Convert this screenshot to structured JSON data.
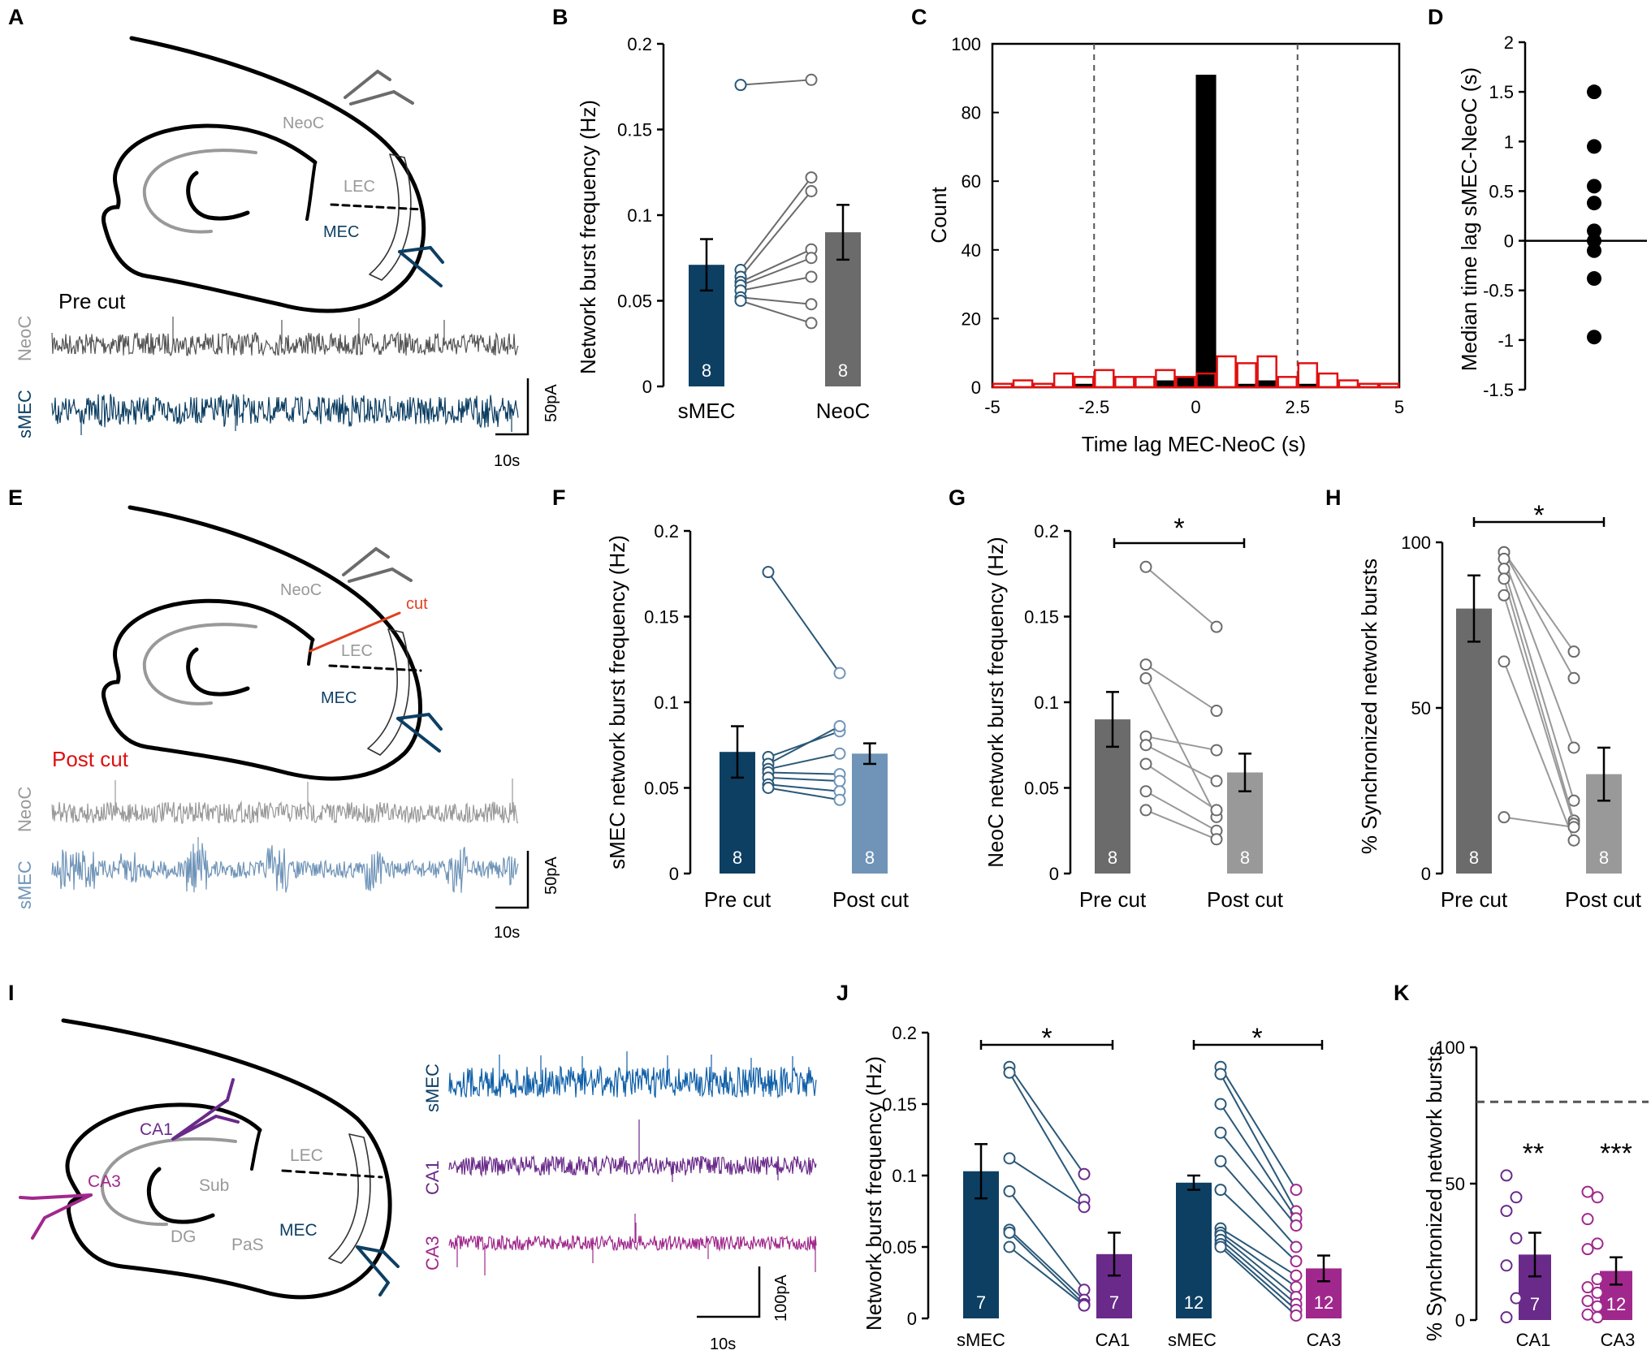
{
  "colors": {
    "smec": "#0d3f63",
    "smec_line": "#2a5878",
    "neoc_dark": "#6b6b6b",
    "neoc_light": "#999999",
    "smec_post": "#6f94b8",
    "smec_blue": "#1060a8",
    "ca1": "#6a2a8a",
    "ca3": "#a0288c",
    "cut": "#e04020",
    "red": "#e11111",
    "black": "#000000",
    "post_text": "#dd1111"
  },
  "panels": {
    "A": "A",
    "B": "B",
    "C": "C",
    "D": "D",
    "E": "E",
    "F": "F",
    "G": "G",
    "H": "H",
    "I": "I",
    "J": "J",
    "K": "K"
  },
  "diagram_a": {
    "labels": {
      "neoc": "NeoC",
      "lec": "LEC",
      "mec": "MEC"
    },
    "condition": "Pre cut",
    "trace_labels": {
      "neoc": "NeoC",
      "smec": "sMEC"
    },
    "scale": {
      "y": "50pA",
      "x": "10s"
    }
  },
  "diagram_e": {
    "labels": {
      "neoc": "NeoC",
      "lec": "LEC",
      "mec": "MEC",
      "cut": "cut"
    },
    "condition": "Post cut",
    "trace_labels": {
      "neoc": "NeoC",
      "smec": "sMEC"
    },
    "scale": {
      "y": "50pA",
      "x": "10s"
    }
  },
  "diagram_i": {
    "labels": {
      "ca1": "CA1",
      "ca3": "CA3",
      "sub": "Sub",
      "dg": "DG",
      "pas": "PaS",
      "lec": "LEC",
      "mec": "MEC"
    },
    "trace_labels": {
      "smec": "sMEC",
      "ca1": "CA1",
      "ca3": "CA3"
    },
    "scale": {
      "y": "100pA",
      "x": "10s"
    }
  },
  "chart_data": [
    {
      "id": "B",
      "type": "bar",
      "ylabel": "Network burst frequency (Hz)",
      "ylim": [
        0,
        0.2
      ],
      "yticks": [
        0,
        0.05,
        0.1,
        0.15,
        0.2
      ],
      "ytick_labels": [
        "0",
        "0.05",
        "0.1",
        "0.15",
        "0.2"
      ],
      "categories": [
        "sMEC",
        "NeoC"
      ],
      "values": [
        0.071,
        0.09
      ],
      "errors": [
        0.015,
        0.016
      ],
      "n_labels": [
        "8",
        "8"
      ],
      "paired": [
        [
          0.176,
          0.179
        ],
        [
          0.068,
          0.122
        ],
        [
          0.064,
          0.114
        ],
        [
          0.061,
          0.08
        ],
        [
          0.059,
          0.075
        ],
        [
          0.056,
          0.064
        ],
        [
          0.052,
          0.048
        ],
        [
          0.05,
          0.037
        ]
      ]
    },
    {
      "id": "C",
      "type": "histogram",
      "title": "",
      "xlabel": "Time lag MEC-NeoC (s)",
      "ylabel": "Count",
      "xlim": [
        -5,
        5
      ],
      "ylim": [
        0,
        100
      ],
      "xticks": [
        -5,
        -2.5,
        0,
        2.5,
        5
      ],
      "xtick_labels": [
        "-5",
        "-2.5",
        "0",
        "2.5",
        "5"
      ],
      "yticks": [
        0,
        20,
        40,
        60,
        80,
        100
      ],
      "ytick_labels": [
        "0",
        "20",
        "40",
        "60",
        "80",
        "100"
      ],
      "dashed_lines": [
        -2.5,
        2.5
      ],
      "bin_width": 0.5,
      "series": [
        {
          "name": "observed",
          "bin_starts": [
            -3.0,
            -1.0,
            -0.5,
            0.0,
            1.0,
            1.5,
            2.5
          ],
          "counts": [
            1,
            2,
            3,
            91,
            1,
            2,
            1
          ]
        },
        {
          "name": "shuffled",
          "bin_starts": [
            -5.0,
            -4.5,
            -4.0,
            -3.5,
            -3.0,
            -2.5,
            -2.0,
            -1.5,
            -1.0,
            -0.5,
            0.0,
            0.5,
            1.0,
            1.5,
            2.0,
            2.5,
            3.0,
            3.5,
            4.0,
            4.5
          ],
          "counts": [
            1,
            2,
            1,
            4,
            3,
            5,
            3,
            3,
            5,
            3,
            4,
            9,
            7,
            9,
            3,
            7,
            4,
            2,
            1,
            1
          ]
        }
      ]
    },
    {
      "id": "D",
      "type": "scatter",
      "ylabel": "Median time lag sMEC-NeoC (s)",
      "ylim": [
        -1.5,
        2
      ],
      "yticks": [
        -1.5,
        -1,
        -0.5,
        0,
        0.5,
        1,
        1.5,
        2
      ],
      "ytick_labels": [
        "-1.5",
        "-1",
        "-0.5",
        "0",
        "0.5",
        "1",
        "1.5",
        "2"
      ],
      "values": [
        1.5,
        0.95,
        0.55,
        0.38,
        0.1,
        0.0,
        -0.1,
        -0.38,
        -0.97
      ]
    },
    {
      "id": "F",
      "type": "bar",
      "ylabel": "sMEC network burst frequency (Hz)",
      "ylim": [
        0,
        0.2
      ],
      "yticks": [
        0,
        0.05,
        0.1,
        0.15,
        0.2
      ],
      "ytick_labels": [
        "0",
        "0.05",
        "0.1",
        "0.15",
        "0.2"
      ],
      "categories": [
        "Pre cut",
        "Post cut"
      ],
      "values": [
        0.071,
        0.07
      ],
      "errors": [
        0.015,
        0.006
      ],
      "n_labels": [
        "8",
        "8"
      ],
      "paired": [
        [
          0.176,
          0.117
        ],
        [
          0.068,
          0.083
        ],
        [
          0.064,
          0.086
        ],
        [
          0.061,
          0.07
        ],
        [
          0.059,
          0.058
        ],
        [
          0.056,
          0.054
        ],
        [
          0.052,
          0.048
        ],
        [
          0.05,
          0.043
        ]
      ]
    },
    {
      "id": "G",
      "type": "bar",
      "ylabel": "NeoC network burst frequency (Hz)",
      "ylim": [
        0,
        0.2
      ],
      "yticks": [
        0,
        0.05,
        0.1,
        0.15,
        0.2
      ],
      "ytick_labels": [
        "0",
        "0.05",
        "0.1",
        "0.15",
        "0.2"
      ],
      "categories": [
        "Pre cut",
        "Post cut"
      ],
      "values": [
        0.09,
        0.059
      ],
      "errors": [
        0.016,
        0.011
      ],
      "n_labels": [
        "8",
        "8"
      ],
      "significance": "*",
      "paired": [
        [
          0.179,
          0.144
        ],
        [
          0.122,
          0.095
        ],
        [
          0.114,
          0.033
        ],
        [
          0.08,
          0.072
        ],
        [
          0.075,
          0.054
        ],
        [
          0.064,
          0.037
        ],
        [
          0.048,
          0.025
        ],
        [
          0.037,
          0.02
        ]
      ]
    },
    {
      "id": "H",
      "type": "bar",
      "ylabel": "% Synchronized network bursts",
      "ylim": [
        0,
        100
      ],
      "yticks": [
        0,
        50,
        100
      ],
      "ytick_labels": [
        "0",
        "50",
        "100"
      ],
      "categories": [
        "Pre cut",
        "Post cut"
      ],
      "values": [
        80,
        30
      ],
      "errors": [
        10,
        8
      ],
      "n_labels": [
        "8",
        "8"
      ],
      "significance": "*",
      "paired": [
        [
          97,
          67
        ],
        [
          97,
          59
        ],
        [
          95,
          38
        ],
        [
          92,
          22
        ],
        [
          89,
          16
        ],
        [
          84,
          15
        ],
        [
          64,
          10
        ],
        [
          17,
          14
        ]
      ]
    },
    {
      "id": "J",
      "type": "bar",
      "ylabel": "Network burst frequency (Hz)",
      "ylim": [
        0,
        0.2
      ],
      "yticks": [
        0,
        0.05,
        0.1,
        0.15,
        0.2
      ],
      "ytick_labels": [
        "0",
        "0.05",
        "0.1",
        "0.15",
        "0.2"
      ],
      "categories": [
        "sMEC",
        "CA1",
        "sMEC",
        "CA3"
      ],
      "values": [
        0.103,
        0.045,
        0.095,
        0.035
      ],
      "errors": [
        0.019,
        0.015,
        0.005,
        0.009
      ],
      "n_labels": [
        "7",
        "7",
        "12",
        "12"
      ],
      "significance": [
        "*",
        "*"
      ],
      "paired_ca1": [
        [
          0.176,
          0.101
        ],
        [
          0.172,
          0.083
        ],
        [
          0.112,
          0.078
        ],
        [
          0.089,
          0.02
        ],
        [
          0.062,
          0.013
        ],
        [
          0.06,
          0.01
        ],
        [
          0.05,
          0.009
        ]
      ],
      "paired_ca3": [
        [
          0.176,
          0.09
        ],
        [
          0.171,
          0.075
        ],
        [
          0.15,
          0.07
        ],
        [
          0.13,
          0.065
        ],
        [
          0.11,
          0.05
        ],
        [
          0.09,
          0.04
        ],
        [
          0.063,
          0.03
        ],
        [
          0.06,
          0.022
        ],
        [
          0.058,
          0.015
        ],
        [
          0.055,
          0.01
        ],
        [
          0.052,
          0.006
        ],
        [
          0.05,
          0.002
        ]
      ]
    },
    {
      "id": "K",
      "type": "bar",
      "ylabel": "% Synchronized network bursts",
      "ylim": [
        0,
        100
      ],
      "yticks": [
        0,
        50,
        100
      ],
      "ytick_labels": [
        "0",
        "50",
        "100"
      ],
      "categories": [
        "CA1",
        "CA3"
      ],
      "values": [
        24,
        18
      ],
      "errors": [
        8,
        5
      ],
      "n_labels": [
        "7",
        "12"
      ],
      "reference_line": 80,
      "significance": [
        "**",
        "***"
      ],
      "points": [
        [
          53,
          45,
          40,
          30,
          20,
          8,
          1
        ],
        [
          47,
          45,
          37,
          28,
          26,
          15,
          12,
          10,
          7,
          5,
          2,
          1
        ]
      ]
    }
  ]
}
